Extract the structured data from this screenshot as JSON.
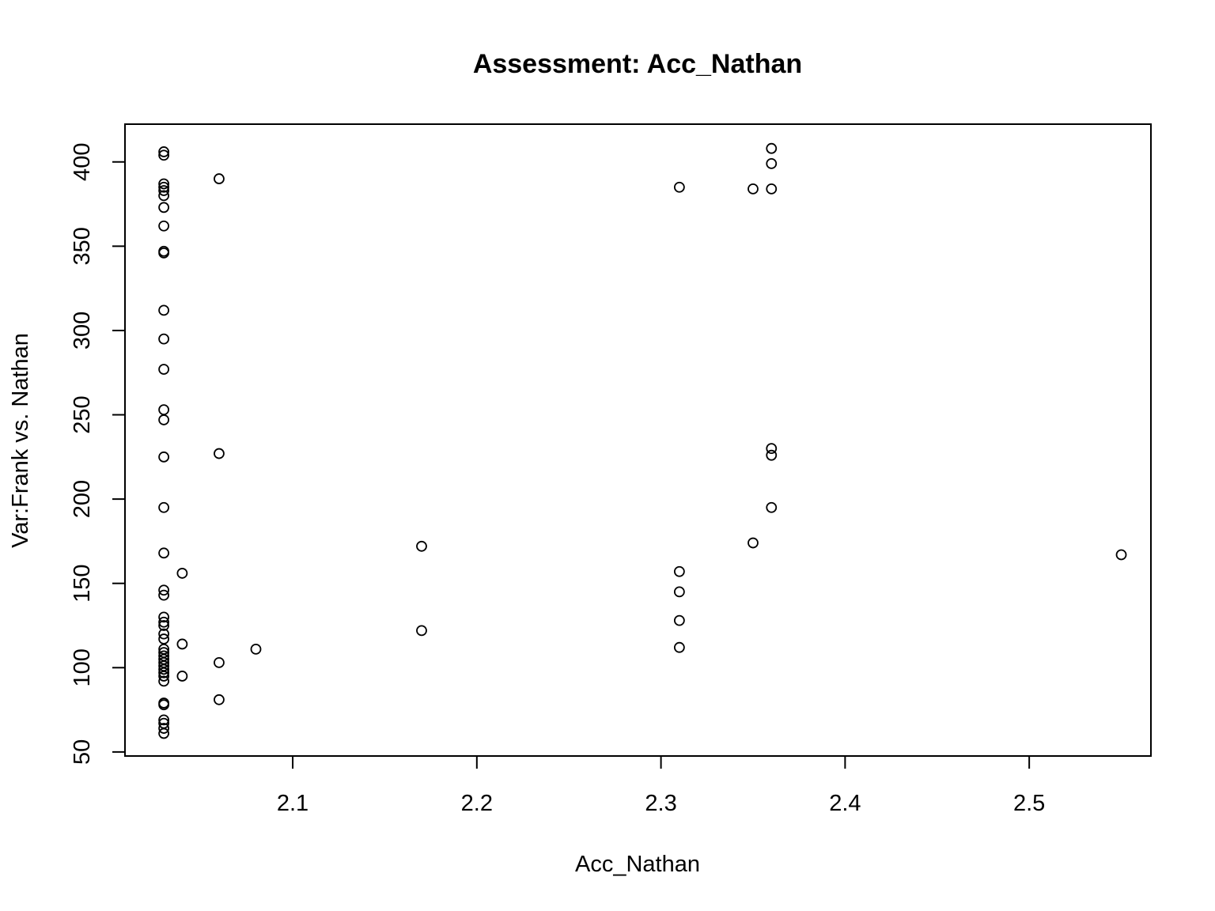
{
  "chart_data": {
    "type": "scatter",
    "title": "Assessment: Acc_Nathan",
    "xlabel": "Acc_Nathan",
    "ylabel": "Var:Frank vs. Nathan",
    "xlim": [
      2.0089,
      2.5661
    ],
    "ylim": [
      47.6,
      422.4
    ],
    "xticks": [
      2.1,
      2.2,
      2.3,
      2.4,
      2.5
    ],
    "xtick_labels": [
      "2.1",
      "2.2",
      "2.3",
      "2.4",
      "2.5"
    ],
    "yticks": [
      50,
      100,
      150,
      200,
      250,
      300,
      350,
      400
    ],
    "ytick_labels": [
      "50",
      "100",
      "150",
      "200",
      "250",
      "300",
      "350",
      "400"
    ],
    "grid": false,
    "marker": "open-circle",
    "color": "#000000",
    "points": [
      [
        2.03,
        406
      ],
      [
        2.03,
        404
      ],
      [
        2.03,
        387
      ],
      [
        2.03,
        385
      ],
      [
        2.03,
        383
      ],
      [
        2.03,
        380
      ],
      [
        2.03,
        373
      ],
      [
        2.03,
        362
      ],
      [
        2.03,
        347
      ],
      [
        2.03,
        346
      ],
      [
        2.03,
        312
      ],
      [
        2.03,
        295
      ],
      [
        2.03,
        277
      ],
      [
        2.03,
        253
      ],
      [
        2.03,
        247
      ],
      [
        2.03,
        225
      ],
      [
        2.03,
        195
      ],
      [
        2.03,
        168
      ],
      [
        2.03,
        146
      ],
      [
        2.03,
        143
      ],
      [
        2.03,
        130
      ],
      [
        2.03,
        127
      ],
      [
        2.03,
        125
      ],
      [
        2.03,
        120
      ],
      [
        2.03,
        117
      ],
      [
        2.03,
        111
      ],
      [
        2.03,
        109
      ],
      [
        2.03,
        107
      ],
      [
        2.03,
        105
      ],
      [
        2.03,
        103
      ],
      [
        2.03,
        101
      ],
      [
        2.03,
        99
      ],
      [
        2.03,
        97
      ],
      [
        2.03,
        95
      ],
      [
        2.03,
        92
      ],
      [
        2.03,
        79
      ],
      [
        2.03,
        78
      ],
      [
        2.03,
        69
      ],
      [
        2.03,
        67
      ],
      [
        2.03,
        64
      ],
      [
        2.03,
        61
      ],
      [
        2.04,
        156
      ],
      [
        2.04,
        114
      ],
      [
        2.04,
        95
      ],
      [
        2.06,
        390
      ],
      [
        2.06,
        227
      ],
      [
        2.06,
        103
      ],
      [
        2.06,
        81
      ],
      [
        2.08,
        111
      ],
      [
        2.17,
        172
      ],
      [
        2.17,
        122
      ],
      [
        2.31,
        385
      ],
      [
        2.31,
        157
      ],
      [
        2.31,
        145
      ],
      [
        2.31,
        128
      ],
      [
        2.31,
        112
      ],
      [
        2.35,
        384
      ],
      [
        2.35,
        174
      ],
      [
        2.36,
        408
      ],
      [
        2.36,
        399
      ],
      [
        2.36,
        384
      ],
      [
        2.36,
        230
      ],
      [
        2.36,
        226
      ],
      [
        2.36,
        195
      ],
      [
        2.55,
        167
      ]
    ]
  }
}
